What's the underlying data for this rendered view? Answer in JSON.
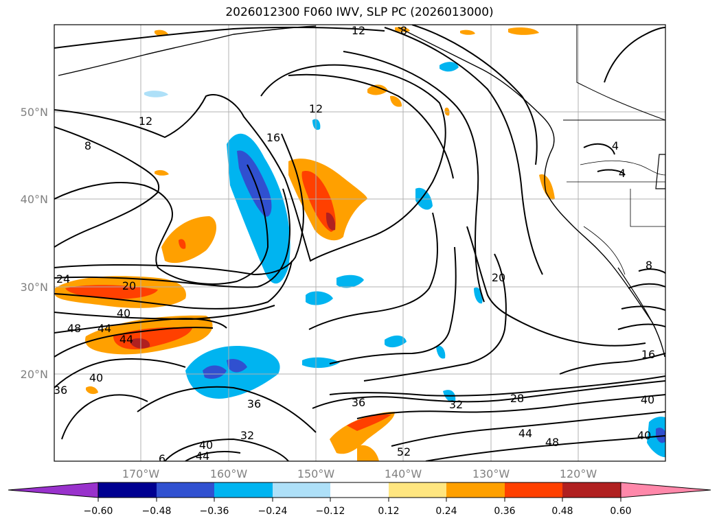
{
  "title": "2026012300 F060 IWV, SLP PC (2026013000)",
  "lat_labels": [
    "50°N",
    "40°N",
    "30°N",
    "20°N"
  ],
  "lon_labels": [
    "170°W",
    "160°W",
    "150°W",
    "140°W",
    "130°W",
    "120°W"
  ],
  "contour_labels": [
    "12",
    "8",
    "12",
    "8",
    "12",
    "16",
    "24",
    "20",
    "40",
    "48",
    "44",
    "44",
    "40",
    "36",
    "36",
    "36",
    "32",
    "32",
    "28",
    "40",
    "40",
    "40",
    "44",
    "44",
    "48",
    "52",
    "20",
    "16",
    "4",
    "4",
    "8",
    "6"
  ],
  "colorbar": {
    "ticks": [
      "−0.60",
      "−0.48",
      "−0.36",
      "−0.24",
      "−0.12",
      "0.12",
      "0.24",
      "0.36",
      "0.48",
      "0.60"
    ],
    "colors": [
      "#9932cc",
      "#000090",
      "#3050d0",
      "#00b4f0",
      "#aee0f8",
      "#ffffff",
      "#ffe680",
      "#ffa000",
      "#ff4000",
      "#b02020",
      "#ff88aa"
    ]
  }
}
